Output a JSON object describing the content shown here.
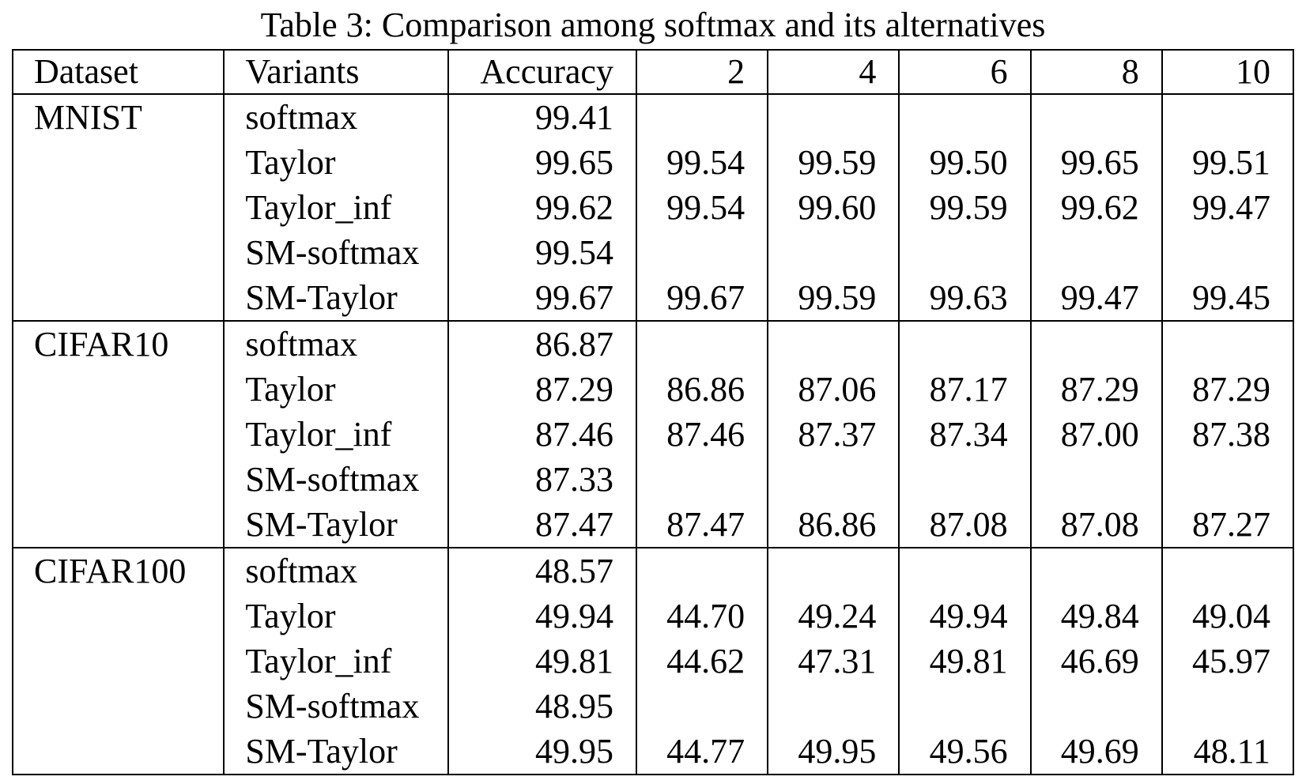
{
  "caption": "Table 3: Comparison among softmax and its alternatives",
  "headers": [
    "Dataset",
    "Variants",
    "Accuracy",
    "2",
    "4",
    "6",
    "8",
    "10"
  ],
  "groups": [
    {
      "dataset": "MNIST",
      "rows": [
        {
          "variant": "softmax",
          "values": [
            "99.41",
            "",
            "",
            "",
            "",
            ""
          ],
          "bold": [
            false,
            false,
            false,
            false,
            false,
            false
          ]
        },
        {
          "variant": "Taylor",
          "values": [
            "99.65",
            "99.54",
            "99.59",
            "99.50",
            "99.65",
            "99.51"
          ],
          "bold": [
            false,
            false,
            false,
            false,
            false,
            false
          ]
        },
        {
          "variant": "Taylor_inf",
          "values": [
            "99.62",
            "99.54",
            "99.60",
            "99.59",
            "99.62",
            "99.47"
          ],
          "bold": [
            false,
            false,
            false,
            false,
            false,
            false
          ]
        },
        {
          "variant": "SM-softmax",
          "values": [
            "99.54",
            "",
            "",
            "",
            "",
            ""
          ],
          "bold": [
            false,
            false,
            false,
            false,
            false,
            false
          ]
        },
        {
          "variant": "SM-Taylor",
          "values": [
            "99.67",
            "99.67",
            "99.59",
            "99.63",
            "99.47",
            "99.45"
          ],
          "bold": [
            true,
            true,
            false,
            false,
            false,
            false
          ]
        }
      ]
    },
    {
      "dataset": "CIFAR10",
      "rows": [
        {
          "variant": "softmax",
          "values": [
            "86.87",
            "",
            "",
            "",
            "",
            ""
          ],
          "bold": [
            false,
            false,
            false,
            false,
            false,
            false
          ]
        },
        {
          "variant": "Taylor",
          "values": [
            "87.29",
            "86.86",
            "87.06",
            "87.17",
            "87.29",
            "87.29"
          ],
          "bold": [
            false,
            false,
            false,
            false,
            false,
            false
          ]
        },
        {
          "variant": "Taylor_inf",
          "values": [
            "87.46",
            "87.46",
            "87.37",
            "87.34",
            "87.00",
            "87.38"
          ],
          "bold": [
            false,
            false,
            false,
            false,
            false,
            false
          ]
        },
        {
          "variant": "SM-softmax",
          "values": [
            "87.33",
            "",
            "",
            "",
            "",
            ""
          ],
          "bold": [
            false,
            false,
            false,
            false,
            false,
            false
          ]
        },
        {
          "variant": "SM-Taylor",
          "values": [
            "87.47",
            "87.47",
            "86.86",
            "87.08",
            "87.08",
            "87.27"
          ],
          "bold": [
            true,
            true,
            false,
            false,
            false,
            false
          ]
        }
      ]
    },
    {
      "dataset": "CIFAR100",
      "rows": [
        {
          "variant": "softmax",
          "values": [
            "48.57",
            "",
            "",
            "",
            "",
            ""
          ],
          "bold": [
            false,
            false,
            false,
            false,
            false,
            false
          ]
        },
        {
          "variant": "Taylor",
          "values": [
            "49.94",
            "44.70",
            "49.24",
            "49.94",
            "49.84",
            "49.04"
          ],
          "bold": [
            false,
            false,
            false,
            false,
            false,
            false
          ]
        },
        {
          "variant": "Taylor_inf",
          "values": [
            "49.81",
            "44.62",
            "47.31",
            "49.81",
            "46.69",
            "45.97"
          ],
          "bold": [
            false,
            false,
            false,
            false,
            false,
            false
          ]
        },
        {
          "variant": "SM-softmax",
          "values": [
            "48.95",
            "",
            "",
            "",
            "",
            ""
          ],
          "bold": [
            false,
            false,
            false,
            false,
            false,
            false
          ]
        },
        {
          "variant": "SM-Taylor",
          "values": [
            "49.95",
            "44.77",
            "49.95",
            "49.56",
            "49.69",
            "48.11"
          ],
          "bold": [
            true,
            false,
            true,
            false,
            false,
            false
          ]
        }
      ]
    }
  ]
}
